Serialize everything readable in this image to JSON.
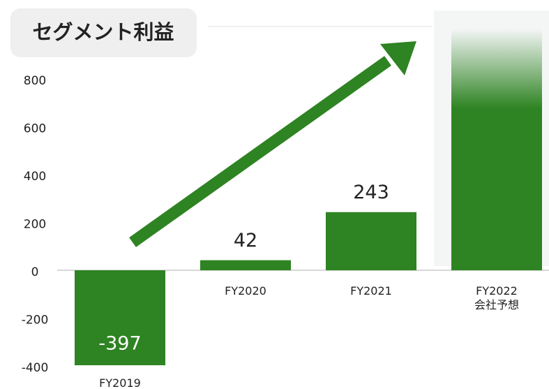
{
  "chart_data": {
    "type": "bar",
    "title": "セグメント利益",
    "categories": [
      "FY2019",
      "FY2020",
      "FY2021",
      "FY2022\n会社予想"
    ],
    "values": [
      -397,
      42,
      243,
      1010
    ],
    "value_labels": [
      "-397",
      "42",
      "243",
      null
    ],
    "color": "#2e8322",
    "ylim": [
      -400,
      1010
    ],
    "yticks": [
      -400,
      -200,
      0,
      200,
      400,
      600,
      800
    ]
  }
}
